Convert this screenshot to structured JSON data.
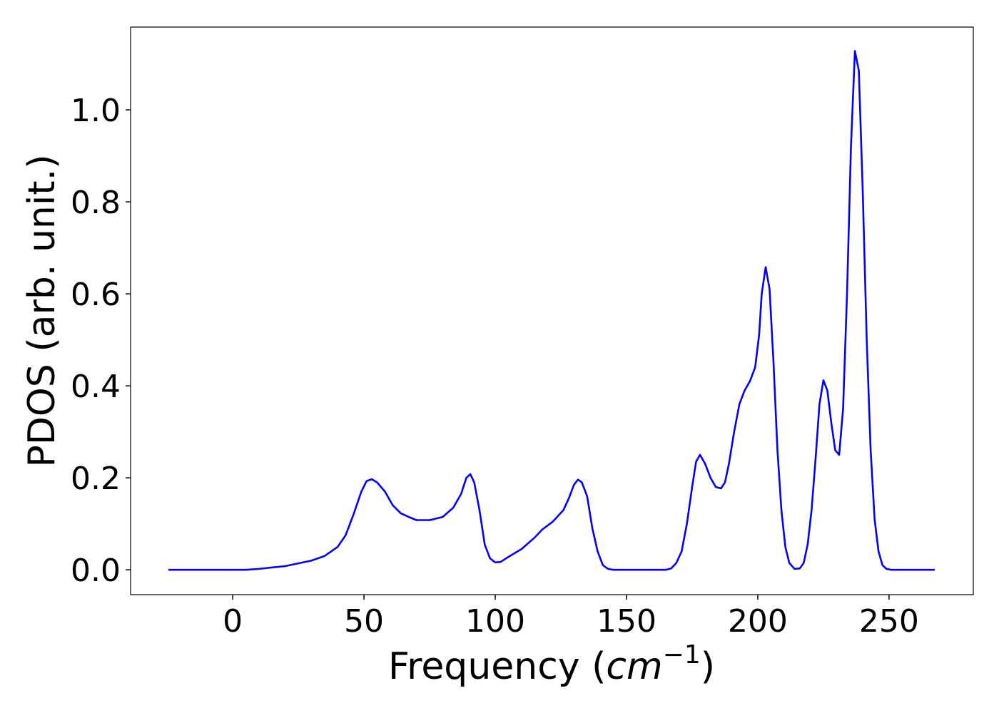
{
  "chart_data": {
    "type": "line",
    "xlabel": {
      "text": "Frequency (",
      "unit": "cm",
      "exponent": "−1",
      "close": ")"
    },
    "ylabel": "PDOS (arb. unit.)",
    "xlim": [
      -38.9,
      282.1
    ],
    "ylim": [
      -0.054,
      1.18
    ],
    "xticks": [
      0,
      50,
      100,
      150,
      200,
      250
    ],
    "yticks": [
      {
        "value": 0,
        "label": "0.0"
      },
      0.2,
      0.4,
      0.6,
      0.8,
      {
        "value": 1,
        "label": "1.0"
      }
    ],
    "grid": false,
    "series": [
      {
        "name": "PDOS",
        "color": "#0000ff",
        "x": [
          -24.5,
          5,
          10,
          20,
          30,
          35,
          40,
          43,
          46,
          49,
          51,
          53,
          55,
          58,
          61,
          64,
          67,
          70,
          75,
          80,
          84,
          87,
          89,
          90.5,
          92,
          94,
          96,
          98,
          100,
          102,
          105,
          110,
          115,
          118,
          122,
          126,
          128,
          130,
          131.5,
          133,
          135,
          137,
          139,
          141,
          143,
          145,
          165,
          167,
          169,
          171,
          173,
          175,
          176.5,
          178,
          180,
          182,
          184,
          186,
          187.5,
          189,
          191,
          193,
          195,
          197,
          199,
          200.5,
          201.5,
          203,
          204.5,
          206,
          207.5,
          209,
          210.5,
          212,
          214,
          216,
          217.5,
          219,
          220.5,
          222,
          223.5,
          225,
          226.5,
          228,
          229.5,
          231,
          232.5,
          234,
          235.5,
          237,
          238.5,
          240,
          241.5,
          243,
          244.5,
          246,
          247.5,
          249,
          251,
          267.4
        ],
        "values": [
          0,
          0,
          0.002,
          0.008,
          0.02,
          0.03,
          0.05,
          0.075,
          0.12,
          0.17,
          0.193,
          0.197,
          0.19,
          0.17,
          0.14,
          0.123,
          0.115,
          0.108,
          0.108,
          0.115,
          0.135,
          0.165,
          0.2,
          0.208,
          0.19,
          0.13,
          0.055,
          0.025,
          0.016,
          0.017,
          0.028,
          0.045,
          0.07,
          0.088,
          0.105,
          0.13,
          0.155,
          0.185,
          0.196,
          0.19,
          0.16,
          0.09,
          0.04,
          0.01,
          0.002,
          0,
          0,
          0.003,
          0.015,
          0.04,
          0.1,
          0.18,
          0.235,
          0.25,
          0.23,
          0.2,
          0.18,
          0.177,
          0.19,
          0.23,
          0.3,
          0.36,
          0.39,
          0.41,
          0.44,
          0.51,
          0.6,
          0.658,
          0.61,
          0.45,
          0.26,
          0.13,
          0.05,
          0.015,
          0.002,
          0.003,
          0.015,
          0.055,
          0.13,
          0.24,
          0.36,
          0.412,
          0.39,
          0.32,
          0.26,
          0.25,
          0.35,
          0.6,
          0.92,
          1.128,
          1.085,
          0.82,
          0.5,
          0.26,
          0.11,
          0.04,
          0.01,
          0.002,
          0,
          0
        ]
      }
    ]
  }
}
